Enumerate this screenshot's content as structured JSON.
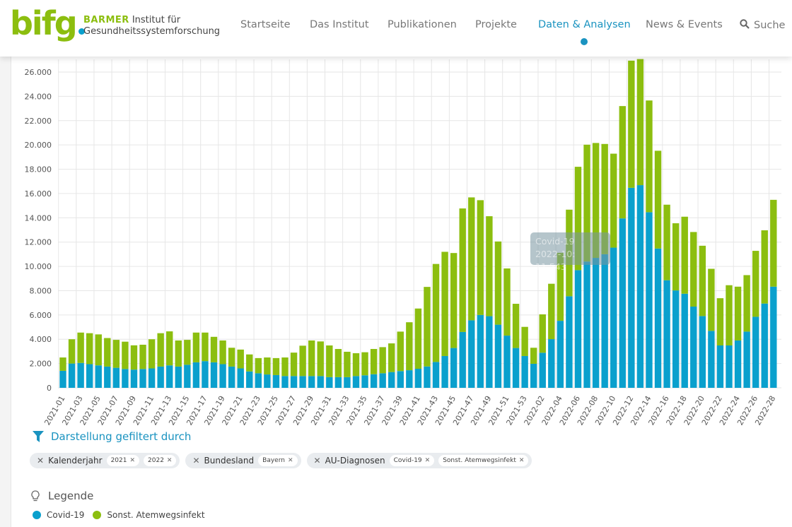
{
  "header": {
    "logo_text": "bifg",
    "brand_name": "BARMER",
    "brand_line1": "Institut für",
    "brand_line2": "Gesundheitssystemforschung",
    "nav": [
      {
        "label": "Startseite",
        "active": false
      },
      {
        "label": "Das Institut",
        "active": false
      },
      {
        "label": "Publikationen",
        "active": false
      },
      {
        "label": "Projekte",
        "active": false
      },
      {
        "label": "Daten & Analysen",
        "active": true
      },
      {
        "label": "News & Events",
        "active": false
      },
      {
        "label": "Suche",
        "active": false
      }
    ]
  },
  "colors": {
    "covid": "#0aa0cd",
    "other": "#8cbe0f",
    "accent": "#1a93c0"
  },
  "chart_data": {
    "type": "bar",
    "stacked": true,
    "ylim": [
      0,
      27000
    ],
    "yticks": [
      0,
      2000,
      4000,
      6000,
      8000,
      10000,
      12000,
      14000,
      16000,
      18000,
      20000,
      22000,
      24000,
      26000
    ],
    "ytick_labels": [
      "0",
      "2.000",
      "4.000",
      "6.000",
      "8.000",
      "10.000",
      "12.000",
      "14.000",
      "16.000",
      "18.000",
      "20.000",
      "22.000",
      "24.000",
      "26.000"
    ],
    "grid": true,
    "categories": [
      "2021-01",
      "2021-02",
      "2021-03",
      "2021-04",
      "2021-05",
      "2021-06",
      "2021-07",
      "2021-08",
      "2021-09",
      "2021-10",
      "2021-11",
      "2021-12",
      "2021-13",
      "2021-14",
      "2021-15",
      "2021-16",
      "2021-17",
      "2021-18",
      "2021-19",
      "2021-20",
      "2021-21",
      "2021-22",
      "2021-23",
      "2021-24",
      "2021-25",
      "2021-26",
      "2021-27",
      "2021-28",
      "2021-29",
      "2021-30",
      "2021-31",
      "2021-32",
      "2021-33",
      "2021-34",
      "2021-35",
      "2021-36",
      "2021-37",
      "2021-38",
      "2021-39",
      "2021-40",
      "2021-41",
      "2021-42",
      "2021-43",
      "2021-44",
      "2021-45",
      "2021-46",
      "2021-47",
      "2021-48",
      "2021-49",
      "2021-50",
      "2021-51",
      "2021-52",
      "2021-53",
      "2022-01",
      "2022-02",
      "2022-03",
      "2022-04",
      "2022-05",
      "2022-06",
      "2022-07",
      "2022-08",
      "2022-09",
      "2022-10",
      "2022-11",
      "2022-12",
      "2022-13",
      "2022-14",
      "2022-15",
      "2022-16",
      "2022-17",
      "2022-18",
      "2022-19",
      "2022-20",
      "2022-21",
      "2022-22",
      "2022-23",
      "2022-24",
      "2022-25",
      "2022-26",
      "2022-27",
      "2022-28"
    ],
    "series": [
      {
        "name": "Covid-19",
        "values": [
          1400,
          2000,
          2050,
          1950,
          1850,
          1750,
          1650,
          1550,
          1500,
          1550,
          1600,
          1750,
          1850,
          1750,
          1900,
          2100,
          2200,
          2100,
          1950,
          1750,
          1600,
          1350,
          1200,
          1100,
          1050,
          970,
          970,
          970,
          970,
          970,
          880,
          880,
          880,
          970,
          1030,
          1120,
          1200,
          1300,
          1380,
          1450,
          1570,
          1760,
          2130,
          2620,
          3280,
          4600,
          5560,
          6000,
          5900,
          5200,
          4300,
          3280,
          2620,
          1980,
          2890,
          4010,
          5520,
          7540,
          9690,
          10400,
          10700,
          11000,
          11543,
          13950,
          16470,
          16690,
          14460,
          11470,
          8860,
          8020,
          7750,
          6690,
          5910,
          4690,
          3490,
          3490,
          3900,
          4630,
          5850,
          6940,
          8330
        ]
      },
      {
        "name": "Sonst. Atemwegsinfekt",
        "values": [
          1100,
          2000,
          2500,
          2550,
          2550,
          2350,
          2300,
          2250,
          2000,
          2000,
          2400,
          2750,
          2800,
          2150,
          2050,
          2450,
          2350,
          2100,
          1950,
          1550,
          1550,
          1400,
          1250,
          1400,
          1400,
          1530,
          1930,
          2500,
          2930,
          2850,
          2610,
          2320,
          2090,
          1880,
          1900,
          2080,
          2150,
          2360,
          3250,
          3950,
          4960,
          6550,
          8070,
          8580,
          7820,
          10170,
          10120,
          9450,
          8230,
          6850,
          5530,
          3640,
          2400,
          1320,
          3160,
          4560,
          5600,
          7130,
          8510,
          9620,
          9460,
          9080,
          7737,
          9250,
          10470,
          10380,
          9200,
          8050,
          6220,
          5530,
          6340,
          6140,
          5790,
          5110,
          3890,
          4960,
          4430,
          4650,
          5430,
          6030,
          7150
        ]
      }
    ],
    "tooltip": {
      "series": "Covid-19",
      "text": "2022-10: 11.543"
    }
  },
  "filters": {
    "title": "Darstellung gefiltert durch",
    "groups": [
      {
        "label": "Kalenderjahr",
        "values": [
          "2021",
          "2022"
        ]
      },
      {
        "label": "Bundesland",
        "values": [
          "Bayern"
        ]
      },
      {
        "label": "AU-Diagnosen",
        "values": [
          "Covid-19",
          "Sonst. Atemwegsinfekt"
        ]
      }
    ]
  },
  "legend": {
    "title": "Legende",
    "items": [
      "Covid-19",
      "Sonst. Atemwegsinfekt"
    ]
  }
}
